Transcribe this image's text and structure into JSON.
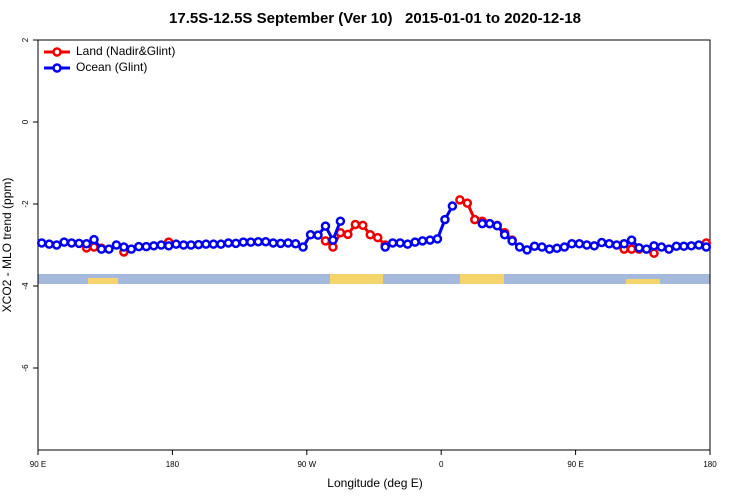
{
  "chart_data": {
    "type": "line",
    "title": "17.5S-12.5S September (Ver 10)   2015-01-01 to 2020-12-18",
    "xlabel": "Longitude (deg E)",
    "ylabel": "XCO2 - MLO trend (ppm)",
    "xlim": [
      90,
      540
    ],
    "ylim": [
      -8,
      2
    ],
    "xticks": [
      {
        "value": 90,
        "label": "90 E"
      },
      180,
      {
        "value": 270,
        "label": "90 W"
      },
      {
        "value": 360,
        "label": "0"
      },
      {
        "value": 450,
        "label": "90 E"
      },
      {
        "value": 540,
        "label": "180"
      }
    ],
    "yticks": [
      -6,
      -4,
      -2,
      0,
      2
    ],
    "legend": "top-left",
    "x": [
      92.5,
      97.5,
      102.5,
      107.5,
      112.5,
      117.5,
      122.5,
      127.5,
      132.5,
      137.5,
      142.5,
      147.5,
      152.5,
      157.5,
      162.5,
      167.5,
      172.5,
      177.5,
      182.5,
      187.5,
      192.5,
      197.5,
      202.5,
      207.5,
      212.5,
      217.5,
      222.5,
      227.5,
      232.5,
      237.5,
      242.5,
      247.5,
      252.5,
      257.5,
      262.5,
      267.5,
      272.5,
      277.5,
      282.5,
      287.5,
      292.5,
      297.5,
      302.5,
      307.5,
      312.5,
      317.5,
      322.5,
      327.5,
      332.5,
      337.5,
      342.5,
      347.5,
      352.5,
      357.5,
      362.5,
      367.5,
      372.5,
      377.5,
      382.5,
      387.5,
      392.5,
      397.5,
      402.5,
      407.5,
      412.5,
      417.5,
      422.5,
      427.5,
      432.5,
      437.5,
      442.5,
      447.5,
      452.5,
      457.5,
      462.5,
      467.5,
      472.5,
      477.5,
      482.5,
      487.5,
      492.5,
      497.5,
      502.5,
      507.5,
      512.5,
      517.5,
      522.5,
      527.5,
      532.5,
      537.5
    ],
    "series": [
      {
        "name": "Land (Nadir&Glint)",
        "color": "#ee0000",
        "values": [
          null,
          null,
          null,
          null,
          null,
          null,
          -3.07,
          -3.05,
          -3.08,
          null,
          null,
          -3.17,
          null,
          null,
          null,
          null,
          null,
          -2.93,
          null,
          null,
          null,
          null,
          null,
          null,
          null,
          null,
          null,
          null,
          null,
          null,
          null,
          null,
          null,
          null,
          null,
          null,
          null,
          null,
          -2.9,
          -3.05,
          -2.7,
          -2.74,
          -2.5,
          -2.52,
          -2.75,
          -2.82,
          -3.0,
          null,
          null,
          null,
          null,
          null,
          null,
          null,
          null,
          null,
          -1.9,
          -1.98,
          -2.38,
          -2.42,
          -2.48,
          -2.52,
          -2.7,
          -2.88,
          null,
          null,
          null,
          null,
          null,
          null,
          null,
          null,
          null,
          null,
          null,
          null,
          null,
          null,
          -3.1,
          -3.1,
          -3.1,
          null,
          -3.2,
          null,
          null,
          null,
          null,
          null,
          null,
          -2.95
        ]
      },
      {
        "name": "Ocean (Glint)",
        "color": "#0000ee",
        "values": [
          -2.95,
          -2.98,
          -3.0,
          -2.93,
          -2.95,
          -2.96,
          -2.97,
          -2.87,
          -3.1,
          -3.1,
          -3.0,
          -3.05,
          -3.1,
          -3.04,
          -3.04,
          -3.02,
          -3.0,
          -3.02,
          -2.98,
          -3.0,
          -3.0,
          -2.99,
          -2.98,
          -2.98,
          -2.98,
          -2.95,
          -2.96,
          -2.93,
          -2.93,
          -2.92,
          -2.92,
          -2.95,
          -2.96,
          -2.95,
          -2.97,
          -3.05,
          -2.75,
          -2.76,
          -2.54,
          -2.88,
          -2.42,
          null,
          null,
          null,
          null,
          null,
          -3.05,
          -2.95,
          -2.95,
          -2.98,
          -2.93,
          -2.9,
          -2.88,
          -2.85,
          -2.38,
          -2.05,
          null,
          null,
          null,
          -2.48,
          -2.48,
          -2.53,
          -2.75,
          -2.9,
          -3.05,
          -3.12,
          -3.03,
          -3.05,
          -3.1,
          -3.08,
          -3.05,
          -2.97,
          -2.97,
          -3.0,
          -3.02,
          -2.94,
          -2.97,
          -3.0,
          -2.97,
          -2.88,
          -3.07,
          -3.1,
          -3.02,
          -3.05,
          -3.1,
          -3.03,
          -3.03,
          -3.02,
          -3.0,
          -3.05
        ]
      }
    ]
  }
}
